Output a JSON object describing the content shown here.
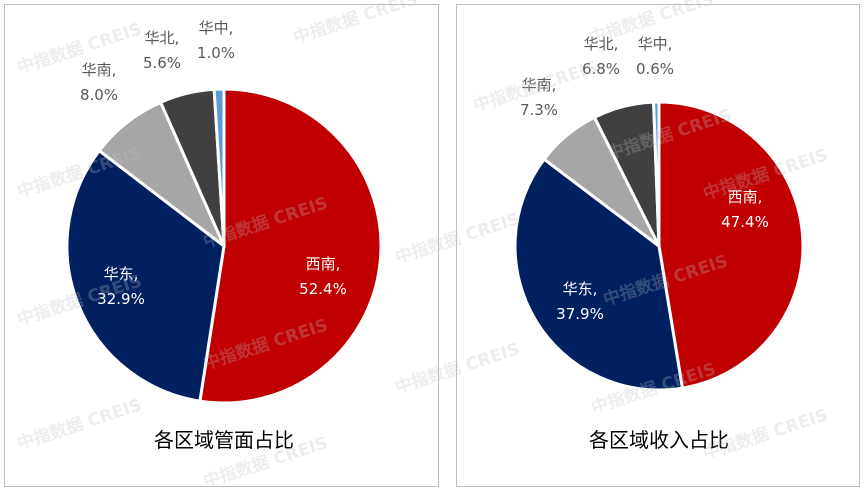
{
  "watermark_text": "中指数据 CREIS",
  "colors": {
    "西南": "#C00000",
    "华东": "#002060",
    "华南": "#A6A6A6",
    "华北": "#404040",
    "华中": "#5B9BD5",
    "label_light": "#ffffff",
    "label_dark": "#595959"
  },
  "chart_data": [
    {
      "type": "pie",
      "title": "各区域管面占比",
      "categories": [
        "西南",
        "华东",
        "华南",
        "华北",
        "华中"
      ],
      "values": [
        52.4,
        32.9,
        8.0,
        5.6,
        1.0
      ],
      "labels": [
        "52.4%",
        "32.9%",
        "8.0%",
        "5.6%",
        "1.0%"
      ]
    },
    {
      "type": "pie",
      "title": "各区域收入占比",
      "categories": [
        "西南",
        "华东",
        "华南",
        "华北",
        "华中"
      ],
      "values": [
        47.4,
        37.9,
        7.3,
        6.8,
        0.6
      ],
      "labels": [
        "47.4%",
        "37.9%",
        "7.3%",
        "6.8%",
        "0.6%"
      ]
    }
  ]
}
